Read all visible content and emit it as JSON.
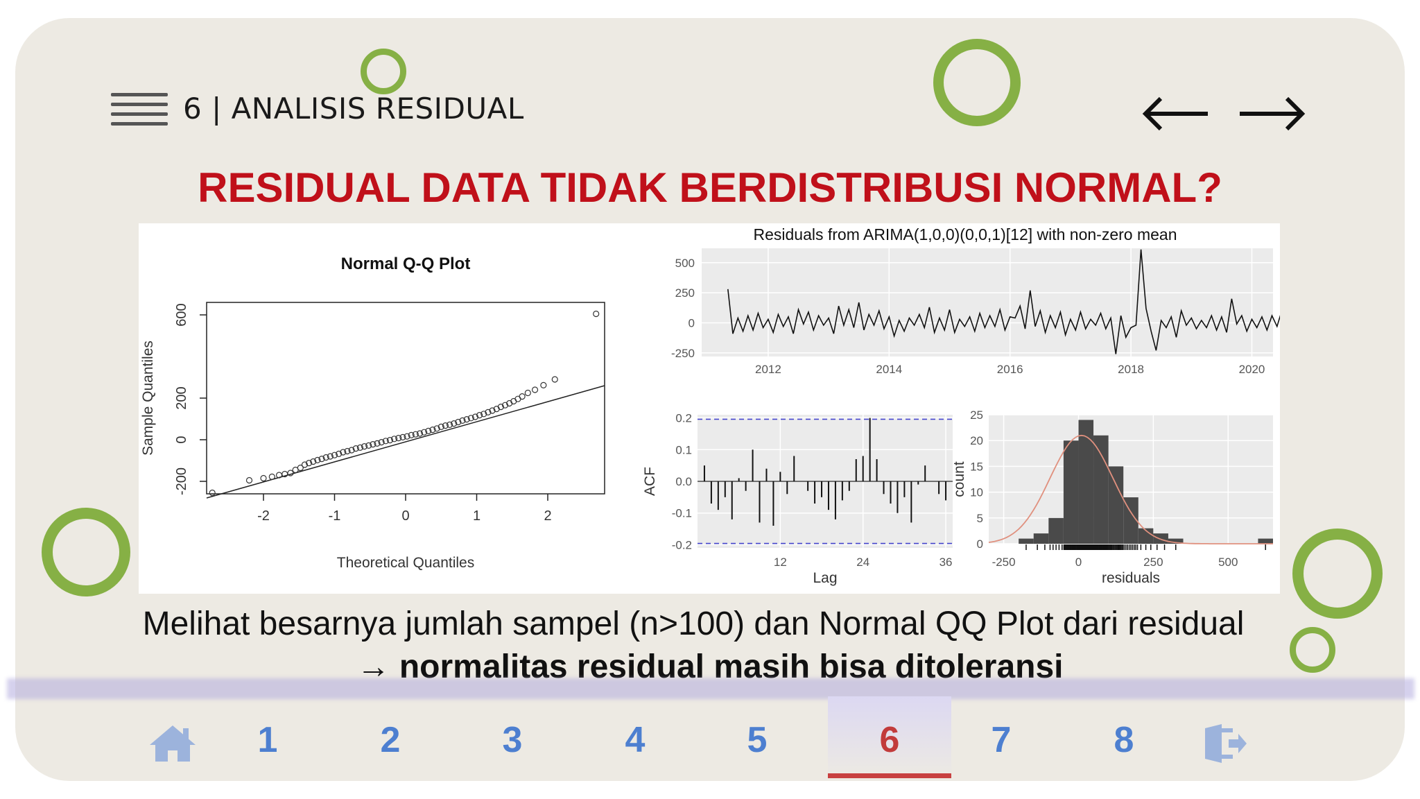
{
  "header": {
    "section_title": "6 | ANALISIS RESIDUAL",
    "menu_icon": "hamburger-menu-icon",
    "prev_icon": "arrow-left-icon",
    "next_icon": "arrow-right-icon"
  },
  "slide": {
    "title": "RESIDUAL DATA TIDAK BERDISTRIBUSI NORMAL?",
    "caption_line1": "Melihat besarnya jumlah sampel (n>100) dan Normal QQ Plot dari residual",
    "caption_arrow": "→",
    "caption_line2": "normalitas residual masih bisa ditoleransi"
  },
  "colors": {
    "title_red": "#c0101a",
    "ring_green": "#86b045",
    "nav_blue": "#4d7fd0",
    "nav_active_red": "#c23b3b",
    "card_bg": "#edeae3"
  },
  "nav": {
    "home_icon": "home-icon",
    "exit_icon": "exit-door-icon",
    "items": [
      {
        "label": "1",
        "active": false
      },
      {
        "label": "2",
        "active": false
      },
      {
        "label": "3",
        "active": false
      },
      {
        "label": "4",
        "active": false
      },
      {
        "label": "5",
        "active": false
      },
      {
        "label": "6",
        "active": true
      },
      {
        "label": "7",
        "active": false
      },
      {
        "label": "8",
        "active": false
      }
    ]
  },
  "chart_data": [
    {
      "type": "scatter",
      "title": "Normal Q-Q Plot",
      "xlabel": "Theoretical Quantiles",
      "ylabel": "Sample Quantiles",
      "xlim": [
        -2.8,
        2.8
      ],
      "ylim": [
        -260,
        660
      ],
      "xticks": [
        "-2",
        "-1",
        "0",
        "1",
        "2"
      ],
      "yticks": [
        "-200",
        "0",
        "200",
        "600"
      ],
      "reference_line": {
        "x": [
          -2.8,
          2.8
        ],
        "y": [
          -280,
          260
        ]
      },
      "x": [
        -2.72,
        -2.2,
        -2.0,
        -1.88,
        -1.78,
        -1.7,
        -1.62,
        -1.55,
        -1.48,
        -1.42,
        -1.36,
        -1.3,
        -1.24,
        -1.18,
        -1.12,
        -1.06,
        -1.0,
        -0.94,
        -0.88,
        -0.82,
        -0.76,
        -0.7,
        -0.64,
        -0.58,
        -0.52,
        -0.46,
        -0.4,
        -0.34,
        -0.28,
        -0.22,
        -0.16,
        -0.1,
        -0.04,
        0.02,
        0.08,
        0.14,
        0.2,
        0.26,
        0.32,
        0.38,
        0.44,
        0.5,
        0.56,
        0.62,
        0.68,
        0.74,
        0.8,
        0.86,
        0.92,
        0.98,
        1.04,
        1.1,
        1.16,
        1.22,
        1.28,
        1.34,
        1.4,
        1.46,
        1.52,
        1.58,
        1.64,
        1.72,
        1.82,
        1.94,
        2.1,
        2.68
      ],
      "y": [
        -255,
        -195,
        -185,
        -178,
        -170,
        -165,
        -160,
        -145,
        -135,
        -120,
        -112,
        -105,
        -98,
        -92,
        -85,
        -80,
        -74,
        -68,
        -60,
        -55,
        -50,
        -42,
        -38,
        -32,
        -28,
        -22,
        -18,
        -12,
        -6,
        -2,
        4,
        8,
        12,
        16,
        22,
        26,
        30,
        36,
        42,
        48,
        54,
        62,
        68,
        72,
        78,
        85,
        92,
        98,
        104,
        110,
        118,
        124,
        132,
        140,
        148,
        158,
        166,
        175,
        185,
        196,
        208,
        225,
        240,
        262,
        290,
        605
      ]
    },
    {
      "type": "line",
      "title": "Residuals from ARIMA(1,0,0)(0,0,1)[12] with non-zero mean",
      "xlabel": "",
      "ylabel": "",
      "xlim": [
        2010.9,
        2020.35
      ],
      "ylim": [
        -280,
        620
      ],
      "xticks": [
        "2012",
        "2014",
        "2016",
        "2018",
        "2020"
      ],
      "yticks": [
        "-250",
        "0",
        "250",
        "500"
      ],
      "x_start": 2011.3333,
      "x_step": 0.0833333,
      "values": [
        280,
        -90,
        40,
        -70,
        60,
        -60,
        80,
        -40,
        30,
        -80,
        70,
        -30,
        50,
        -90,
        110,
        -10,
        90,
        -60,
        60,
        -20,
        40,
        -90,
        140,
        -20,
        110,
        -40,
        170,
        -60,
        70,
        -20,
        100,
        -50,
        50,
        -110,
        20,
        -70,
        40,
        -20,
        70,
        -40,
        130,
        -80,
        40,
        -60,
        110,
        -80,
        30,
        -30,
        50,
        -70,
        80,
        -40,
        60,
        -30,
        110,
        -60,
        50,
        40,
        140,
        -50,
        270,
        -30,
        100,
        -80,
        60,
        -40,
        90,
        -100,
        30,
        -60,
        90,
        -50,
        30,
        -20,
        80,
        -50,
        40,
        -260,
        60,
        -120,
        -40,
        -20,
        610,
        120,
        -70,
        -230,
        20,
        -40,
        50,
        -120,
        100,
        -20,
        40,
        -50,
        20,
        -40,
        60,
        -60,
        50,
        -80,
        200,
        -10,
        60,
        -70,
        30,
        -40,
        50,
        -60,
        60,
        -30,
        110,
        -20,
        90,
        -60,
        70,
        -50,
        40,
        -20,
        130,
        -70,
        70,
        -60,
        80,
        -10,
        70,
        -60,
        40,
        -50,
        60,
        -80,
        230,
        -180,
        90,
        -20,
        -40,
        -150,
        60,
        -20,
        30,
        -60,
        80,
        200
      ]
    },
    {
      "type": "bar",
      "title": "",
      "xlabel": "Lag",
      "ylabel": "ACF",
      "xlim": [
        0,
        37
      ],
      "ylim": [
        -0.21,
        0.21
      ],
      "xticks": [
        "12",
        "24",
        "36"
      ],
      "yticks": [
        "-0.2",
        "-0.1",
        "0.0",
        "0.1",
        "0.2"
      ],
      "confidence_band": 0.196,
      "lags": [
        1,
        2,
        3,
        4,
        5,
        6,
        7,
        8,
        9,
        10,
        11,
        12,
        13,
        14,
        15,
        16,
        17,
        18,
        19,
        20,
        21,
        22,
        23,
        24,
        25,
        26,
        27,
        28,
        29,
        30,
        31,
        32,
        33,
        34,
        35,
        36
      ],
      "values": [
        0.05,
        -0.07,
        -0.09,
        -0.05,
        -0.12,
        0.01,
        -0.03,
        0.1,
        -0.13,
        0.04,
        -0.14,
        0.03,
        -0.04,
        0.08,
        0.0,
        -0.03,
        -0.07,
        -0.05,
        -0.09,
        -0.12,
        -0.06,
        -0.03,
        0.07,
        0.08,
        0.2,
        0.07,
        -0.04,
        -0.07,
        -0.1,
        -0.05,
        -0.13,
        -0.01,
        0.05,
        0.0,
        -0.04,
        -0.06
      ]
    },
    {
      "type": "bar",
      "title": "",
      "xlabel": "residuals",
      "ylabel": "count",
      "xlim": [
        -300,
        650
      ],
      "ylim": [
        0,
        25
      ],
      "xticks": [
        "-250",
        "0",
        "250",
        "500"
      ],
      "yticks": [
        "0",
        "5",
        "10",
        "15",
        "20",
        "25"
      ],
      "bin_width": 50,
      "bin_starts": [
        -200,
        -150,
        -100,
        -50,
        0,
        50,
        100,
        150,
        200,
        250,
        300,
        350,
        400,
        450,
        500,
        550,
        600
      ],
      "counts": [
        1,
        2,
        5,
        20,
        24,
        21,
        15,
        9,
        3,
        2,
        1,
        0,
        0,
        0,
        0,
        0,
        1
      ]
    }
  ]
}
